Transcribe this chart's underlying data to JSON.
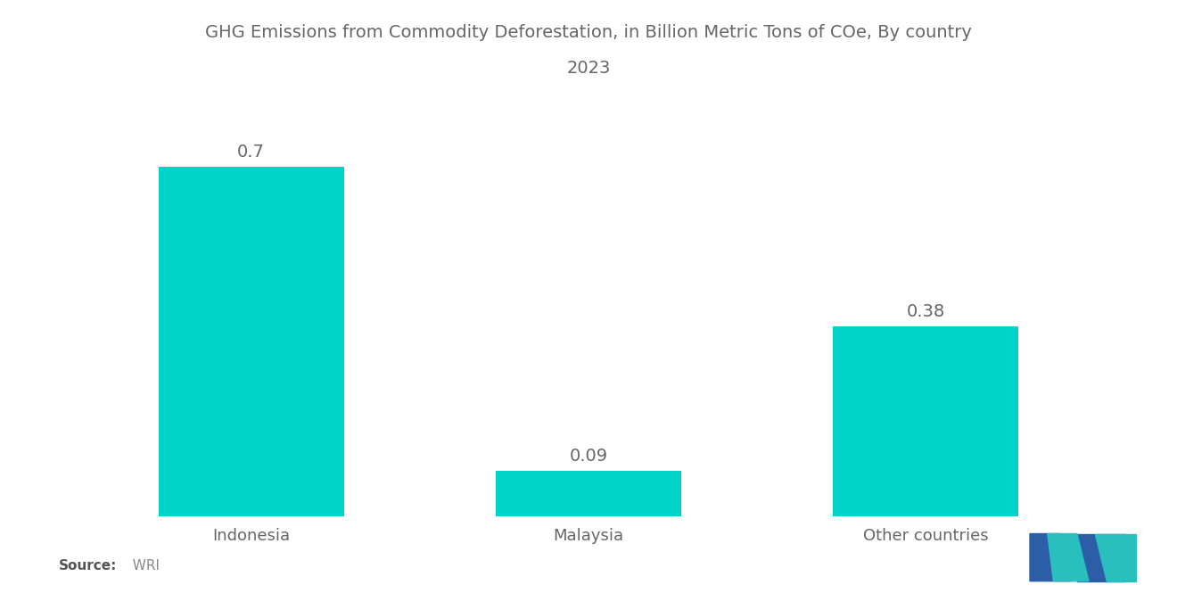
{
  "title_line1": "GHG Emissions from Commodity Deforestation, in Billion Metric Tons of COe, By country",
  "title_line2": "2023",
  "categories": [
    "Indonesia",
    "Malaysia",
    "Other countries"
  ],
  "values": [
    0.7,
    0.09,
    0.38
  ],
  "bar_color": "#00D4C8",
  "value_labels": [
    "0.7",
    "0.09",
    "0.38"
  ],
  "source_bold": "Source:",
  "source_normal": "  WRI",
  "background_color": "#ffffff",
  "title_color": "#666666",
  "label_color": "#666666",
  "value_color": "#666666",
  "ylim": [
    0,
    0.82
  ],
  "bar_width": 0.55,
  "xlim": [
    -0.5,
    2.5
  ]
}
